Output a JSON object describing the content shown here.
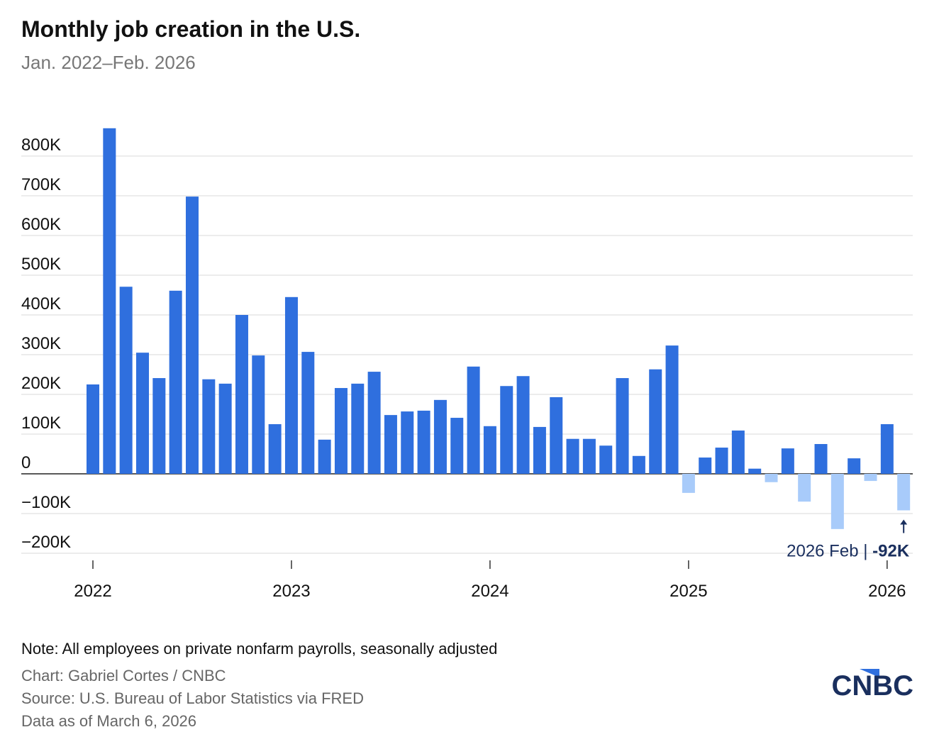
{
  "chart_data": {
    "type": "bar",
    "title": "Monthly job creation in the U.S.",
    "subtitle": "Jan. 2022–Feb. 2026",
    "categories": [
      "2022",
      null,
      null,
      null,
      null,
      null,
      null,
      null,
      null,
      null,
      null,
      null,
      "2023",
      null,
      null,
      null,
      null,
      null,
      null,
      null,
      null,
      null,
      null,
      null,
      "2024",
      null,
      null,
      null,
      null,
      null,
      null,
      null,
      null,
      null,
      null,
      null,
      "2025",
      null,
      null,
      null,
      null,
      null,
      null,
      null,
      null,
      null,
      null,
      null,
      "2026",
      null
    ],
    "values": [
      225,
      870,
      471,
      305,
      241,
      461,
      698,
      238,
      227,
      400,
      298,
      125,
      445,
      307,
      86,
      216,
      227,
      257,
      148,
      157,
      159,
      186,
      141,
      270,
      120,
      221,
      246,
      118,
      193,
      88,
      88,
      71,
      241,
      45,
      263,
      323,
      -48,
      41,
      66,
      109,
      13,
      -21,
      64,
      -70,
      75,
      -139,
      39,
      -18,
      125,
      -92
    ],
    "value_labels": [
      null,
      null,
      null,
      null,
      null,
      null,
      null,
      null,
      null,
      null,
      null,
      null,
      null,
      null,
      null,
      null,
      null,
      null,
      null,
      null,
      null,
      null,
      null,
      null,
      null,
      null,
      null,
      null,
      null,
      null,
      null,
      null,
      null,
      null,
      null,
      null,
      null,
      null,
      null,
      null,
      null,
      null,
      null,
      null,
      null,
      null,
      null,
      null,
      null,
      "-92K"
    ],
    "annotation": "2026 Feb |",
    "color": "#2f6fde",
    "negative_color": "#a8cbfa",
    "ylim": [
      -200,
      900
    ],
    "yticks": [
      {
        "value": -200,
        "label": "−200K"
      },
      {
        "value": -100,
        "label": "−100K"
      },
      0,
      {
        "value": 100,
        "label": "100K"
      },
      {
        "value": 200,
        "label": "200K"
      },
      {
        "value": 300,
        "label": "300K"
      },
      {
        "value": 400,
        "label": "400K"
      },
      {
        "value": 500,
        "label": "500K"
      },
      {
        "value": 600,
        "label": "600K"
      },
      {
        "value": 700,
        "label": "700K"
      },
      {
        "value": 800,
        "label": "800K"
      }
    ],
    "grid": true,
    "note": "Note: All employees on private nonfarm payrolls, seasonally adjusted",
    "credit": "Chart: Gabriel Cortes / CNBC",
    "source": "Source: U.S. Bureau of Labor Statistics via FRED",
    "date": "Data as of March 6, 2026",
    "logo": "CNBC"
  }
}
